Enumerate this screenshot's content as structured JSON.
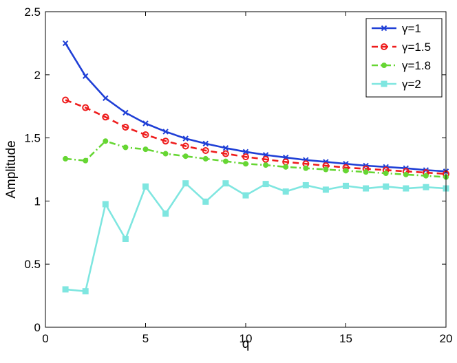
{
  "chart_data": {
    "type": "line",
    "title": "",
    "xlabel": "q",
    "ylabel": "Amplitude",
    "xlim": [
      0,
      20
    ],
    "ylim": [
      0,
      2.5
    ],
    "xticks": [
      0,
      5,
      10,
      15,
      20
    ],
    "yticks": [
      0,
      0.5,
      1,
      1.5,
      2,
      2.5
    ],
    "xtick_labels": [
      "0",
      "5",
      "10",
      "15",
      "20"
    ],
    "ytick_labels": [
      "0",
      "0.5",
      "1",
      "1.5",
      "2",
      "2.5"
    ],
    "grid": false,
    "legend_position": "top-right",
    "x": [
      1,
      2,
      3,
      4,
      5,
      6,
      7,
      8,
      9,
      10,
      11,
      12,
      13,
      14,
      15,
      16,
      17,
      18,
      19,
      20
    ],
    "series": [
      {
        "name": "γ=1",
        "color": "#1f3fd6",
        "line_style": "solid",
        "marker": "x",
        "values": [
          2.25,
          1.99,
          1.815,
          1.7,
          1.615,
          1.55,
          1.495,
          1.455,
          1.42,
          1.39,
          1.365,
          1.345,
          1.325,
          1.31,
          1.295,
          1.28,
          1.27,
          1.26,
          1.245,
          1.235
        ]
      },
      {
        "name": "γ=1.5",
        "color": "#ee1c1c",
        "line_style": "dashed",
        "marker": "o",
        "values": [
          1.8,
          1.74,
          1.665,
          1.585,
          1.525,
          1.475,
          1.435,
          1.4,
          1.375,
          1.35,
          1.33,
          1.31,
          1.295,
          1.28,
          1.265,
          1.255,
          1.245,
          1.235,
          1.225,
          1.215
        ]
      },
      {
        "name": "γ=1.8",
        "color": "#66d633",
        "line_style": "dashdot",
        "marker": "dot",
        "values": [
          1.335,
          1.32,
          1.475,
          1.425,
          1.41,
          1.375,
          1.355,
          1.335,
          1.315,
          1.295,
          1.285,
          1.27,
          1.26,
          1.25,
          1.24,
          1.23,
          1.22,
          1.21,
          1.2,
          1.19
        ]
      },
      {
        "name": "γ=2",
        "color": "#7fe6e0",
        "line_style": "solid",
        "marker": "s",
        "values": [
          0.3,
          0.285,
          0.975,
          0.7,
          1.115,
          0.9,
          1.14,
          0.995,
          1.14,
          1.045,
          1.135,
          1.075,
          1.125,
          1.09,
          1.12,
          1.1,
          1.115,
          1.1,
          1.11,
          1.1
        ]
      }
    ]
  }
}
